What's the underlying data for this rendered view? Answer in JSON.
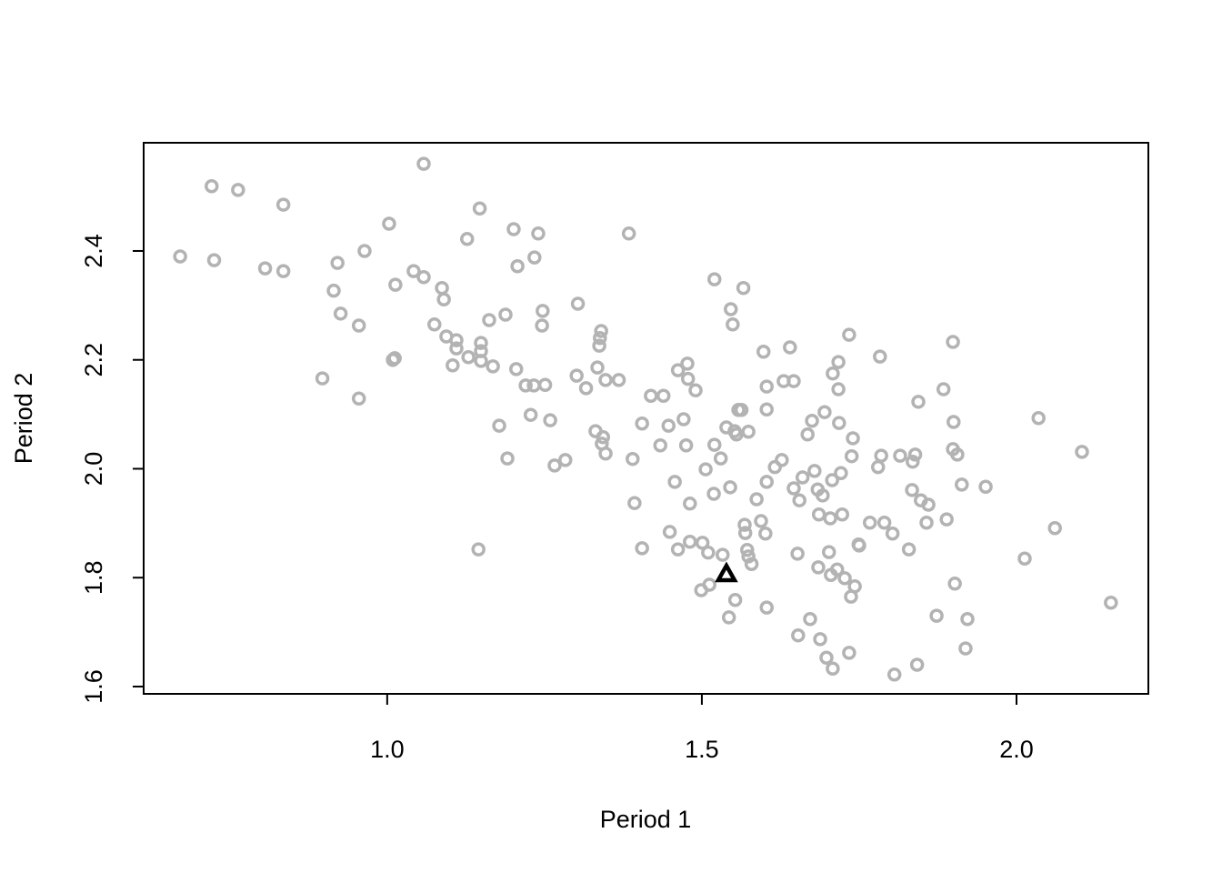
{
  "chart_data": {
    "type": "scatter",
    "xlabel": "Period 1",
    "ylabel": "Period 2",
    "xlim": [
      0.613,
      2.2095
    ],
    "ylim": [
      1.5866,
      2.5987
    ],
    "xticks": [
      {
        "value": 1,
        "label": "1.0"
      },
      1.5,
      {
        "value": 2,
        "label": "2.0"
      }
    ],
    "yticks": [
      1.6,
      1.8,
      {
        "value": 2,
        "label": "2.0"
      },
      2.2,
      2.4
    ],
    "series": [
      {
        "color": "#b3b3b3",
        "marker": "circle",
        "x": [
          0.671,
          0.721,
          0.725,
          0.763,
          0.806,
          0.835,
          0.835,
          0.897,
          0.915,
          0.921,
          0.926,
          0.955,
          0.955,
          0.964,
          1.003,
          1.009,
          1.013,
          1.012,
          1.042,
          1.058,
          1.058,
          1.075,
          1.087,
          1.09,
          1.094,
          1.104,
          1.11,
          1.11,
          1.127,
          1.129,
          1.147,
          1.149,
          1.149,
          1.149,
          1.145,
          1.162,
          1.168,
          1.178,
          1.188,
          1.191,
          1.201,
          1.205,
          1.207,
          1.22,
          1.228,
          1.233,
          1.234,
          1.24,
          1.246,
          1.247,
          1.251,
          1.259,
          1.266,
          1.283,
          1.301,
          1.303,
          1.316,
          1.331,
          1.334,
          1.337,
          1.338,
          1.34,
          1.341,
          1.343,
          1.347,
          1.347,
          1.368,
          1.384,
          1.39,
          1.393,
          1.405,
          1.405,
          1.419,
          1.434,
          1.439,
          1.447,
          1.449,
          1.457,
          1.462,
          1.462,
          1.471,
          1.475,
          1.477,
          1.478,
          1.481,
          1.481,
          1.49,
          1.499,
          1.501,
          1.506,
          1.51,
          1.512,
          1.519,
          1.52,
          1.52,
          1.53,
          1.533,
          1.539,
          1.543,
          1.545,
          1.546,
          1.549,
          1.552,
          1.553,
          1.558,
          1.563,
          1.555,
          1.566,
          1.568,
          1.569,
          1.572,
          1.574,
          1.574,
          1.579,
          1.587,
          1.594,
          1.598,
          1.601,
          1.603,
          1.603,
          1.603,
          1.603,
          1.616,
          1.627,
          1.63,
          1.64,
          1.646,
          1.646,
          1.652,
          1.653,
          1.655,
          1.66,
          1.668,
          1.672,
          1.675,
          1.679,
          1.684,
          1.685,
          1.686,
          1.688,
          1.692,
          1.695,
          1.698,
          1.702,
          1.704,
          1.705,
          1.708,
          1.707,
          1.708,
          1.715,
          1.717,
          1.717,
          1.718,
          1.721,
          1.723,
          1.727,
          1.734,
          1.734,
          1.737,
          1.738,
          1.74,
          1.743,
          1.749,
          1.75,
          1.767,
          1.78,
          1.783,
          1.785,
          1.79,
          1.803,
          1.806,
          1.815,
          1.829,
          1.834,
          1.835,
          1.839,
          1.842,
          1.844,
          1.848,
          1.857,
          1.86,
          1.873,
          1.884,
          1.889,
          1.899,
          1.899,
          1.9,
          1.902,
          1.906,
          1.913,
          1.919,
          1.922,
          1.951,
          2.013,
          2.035,
          2.061,
          2.104,
          2.15
        ],
        "y": [
          2.39,
          2.519,
          2.383,
          2.512,
          2.368,
          2.363,
          2.485,
          2.166,
          2.327,
          2.378,
          2.285,
          2.263,
          2.129,
          2.4,
          2.45,
          2.2,
          2.338,
          2.203,
          2.363,
          2.352,
          2.56,
          2.265,
          2.332,
          2.311,
          2.243,
          2.19,
          2.236,
          2.221,
          2.422,
          2.205,
          2.478,
          2.231,
          2.216,
          2.198,
          1.852,
          2.273,
          2.188,
          2.079,
          2.283,
          2.019,
          2.44,
          2.183,
          2.372,
          2.153,
          2.099,
          2.153,
          2.388,
          2.432,
          2.263,
          2.29,
          2.154,
          2.089,
          2.006,
          2.016,
          2.171,
          2.303,
          2.148,
          2.069,
          2.186,
          2.226,
          2.24,
          2.253,
          2.046,
          2.058,
          2.028,
          2.163,
          2.163,
          2.432,
          2.018,
          1.937,
          2.083,
          1.854,
          2.134,
          2.043,
          2.134,
          2.079,
          1.884,
          1.976,
          2.181,
          1.852,
          2.091,
          2.043,
          2.193,
          2.165,
          1.936,
          1.866,
          2.144,
          1.777,
          1.864,
          1.999,
          1.846,
          1.787,
          1.954,
          2.348,
          2.044,
          2.019,
          1.842,
          2.076,
          1.727,
          1.966,
          2.293,
          2.265,
          2.069,
          1.759,
          2.108,
          2.108,
          2.063,
          2.332,
          1.897,
          1.882,
          1.851,
          2.068,
          1.839,
          1.825,
          1.944,
          1.904,
          2.215,
          1.881,
          1.976,
          1.745,
          2.151,
          2.109,
          2.003,
          2.016,
          2.161,
          2.223,
          2.161,
          1.964,
          1.844,
          1.694,
          1.942,
          1.984,
          2.063,
          1.724,
          2.088,
          1.996,
          1.962,
          1.819,
          1.916,
          1.687,
          1.951,
          2.104,
          1.653,
          1.847,
          1.909,
          1.805,
          1.633,
          1.979,
          2.175,
          1.815,
          2.146,
          2.196,
          2.084,
          1.992,
          1.916,
          1.799,
          2.246,
          1.662,
          1.765,
          2.023,
          2.056,
          1.784,
          1.861,
          1.859,
          1.901,
          2.003,
          2.206,
          2.024,
          1.901,
          1.881,
          1.622,
          2.024,
          1.852,
          1.961,
          2.013,
          2.026,
          1.64,
          2.123,
          1.942,
          1.901,
          1.934,
          1.73,
          2.146,
          1.907,
          2.233,
          2.036,
          2.086,
          1.789,
          2.026,
          1.971,
          1.67,
          1.724,
          1.967,
          1.835,
          2.093,
          1.891,
          2.031,
          1.754
        ]
      },
      {
        "color": "#000000",
        "marker": "triangle",
        "x": [
          1.539
        ],
        "y": [
          1.807
        ]
      }
    ]
  }
}
